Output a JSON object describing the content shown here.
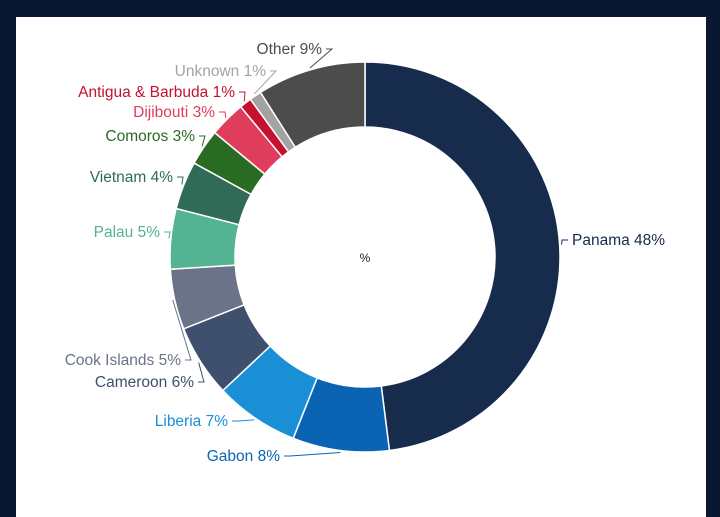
{
  "chart_data": {
    "type": "pie",
    "center_label": "%",
    "series": [
      {
        "name": "Panama",
        "value": 48,
        "color": "#172b4d",
        "label": "Panama 48%"
      },
      {
        "name": "Gabon",
        "value": 8,
        "color": "#0a64b3",
        "label": "Gabon 8%"
      },
      {
        "name": "Liberia",
        "value": 7,
        "color": "#1a8fd6",
        "label": "Liberia 7%"
      },
      {
        "name": "Cameroon",
        "value": 6,
        "color": "#3e506e",
        "label": "Cameroon 6%"
      },
      {
        "name": "Cook Islands",
        "value": 5,
        "color": "#6b7388",
        "label": "Cook Islands 5%"
      },
      {
        "name": "Palau",
        "value": 5,
        "color": "#54b392",
        "label": "Palau 5%"
      },
      {
        "name": "Vietnam",
        "value": 4,
        "color": "#2f6b56",
        "label": "Vietnam 4%"
      },
      {
        "name": "Comoros",
        "value": 3,
        "color": "#2a6b24",
        "label": "Comoros 3%"
      },
      {
        "name": "Dijibouti",
        "value": 3,
        "color": "#e03c5c",
        "label": "Dijibouti 3%"
      },
      {
        "name": "Antigua & Barbuda",
        "value": 1,
        "color": "#c5122e",
        "label": "Antigua & Barbuda 1%"
      },
      {
        "name": "Unknown",
        "value": 1,
        "color": "#a3a3a3",
        "label": "Unknown 1%"
      },
      {
        "name": "Other",
        "value": 9,
        "color": "#4c4c4c",
        "label": "Other 9%"
      }
    ]
  }
}
